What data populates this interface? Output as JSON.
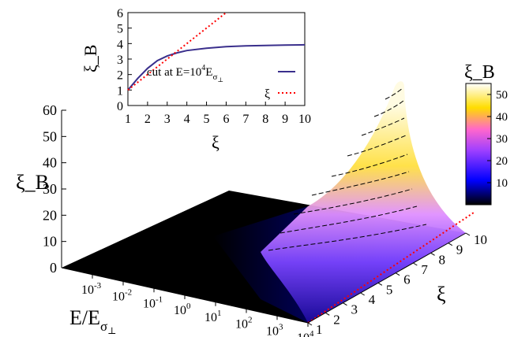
{
  "chart_data": [
    {
      "type": "surface",
      "zlabel": "ξ_B",
      "xlabel": "E/E_σ⊥",
      "ylabel": "ξ",
      "z_ticks": [
        "0",
        "10",
        "20",
        "30",
        "40",
        "50",
        "60"
      ],
      "x_ticks": [
        "-3",
        "-2",
        "-1",
        "0",
        "1",
        "2",
        "3",
        "4"
      ],
      "y_ticks": [
        "1",
        "2",
        "3",
        "4",
        "5",
        "6",
        "7",
        "8",
        "9",
        "10"
      ],
      "z_range": [
        0,
        60
      ],
      "x_range_log10": [
        -4,
        4
      ],
      "y_range": [
        1,
        10
      ],
      "red_dotted_line": "ξ_B = ξ in the E=10^4 plane",
      "colorbar": {
        "title": "ξ_B",
        "ticks": [
          "10",
          "20",
          "30",
          "40",
          "50"
        ],
        "range": [
          0,
          55
        ],
        "colors": [
          "#000000",
          "#0000ff",
          "#9933ff",
          "#ff66cc",
          "#ffdd00",
          "#ffffff"
        ]
      },
      "peak_at_E_1e4": [
        {
          "xi": 1,
          "xi_B": 1
        },
        {
          "xi": 2,
          "xi_B": 3
        },
        {
          "xi": 3,
          "xi_B": 7
        },
        {
          "xi": 4,
          "xi_B": 12
        },
        {
          "xi": 5,
          "xi_B": 18
        },
        {
          "xi": 6,
          "xi_B": 25
        },
        {
          "xi": 7,
          "xi_B": 33
        },
        {
          "xi": 8,
          "xi_B": 41
        },
        {
          "xi": 9,
          "xi_B": 48
        },
        {
          "xi": 10,
          "xi_B": 55
        }
      ]
    },
    {
      "type": "line",
      "xlabel": "ξ",
      "ylabel": "ξ_B",
      "x_ticks": [
        "1",
        "2",
        "3",
        "4",
        "5",
        "6",
        "7",
        "8",
        "9",
        "10"
      ],
      "y_ticks": [
        "0",
        "1",
        "2",
        "3",
        "4",
        "5",
        "6"
      ],
      "xlim": [
        1,
        10
      ],
      "ylim": [
        0,
        6
      ],
      "series": [
        {
          "name": "cut at E=10^4 E_σ⊥",
          "color": "#3a2f8c",
          "x": [
            1,
            1.5,
            2,
            2.5,
            3,
            3.5,
            4,
            5,
            6,
            7,
            8,
            9,
            10
          ],
          "y": [
            1,
            1.75,
            2.4,
            2.9,
            3.2,
            3.4,
            3.55,
            3.7,
            3.8,
            3.85,
            3.88,
            3.9,
            3.92
          ]
        },
        {
          "name": "ξ",
          "color": "#ff0000",
          "x": [
            1,
            6
          ],
          "y": [
            1,
            6
          ]
        }
      ]
    }
  ]
}
